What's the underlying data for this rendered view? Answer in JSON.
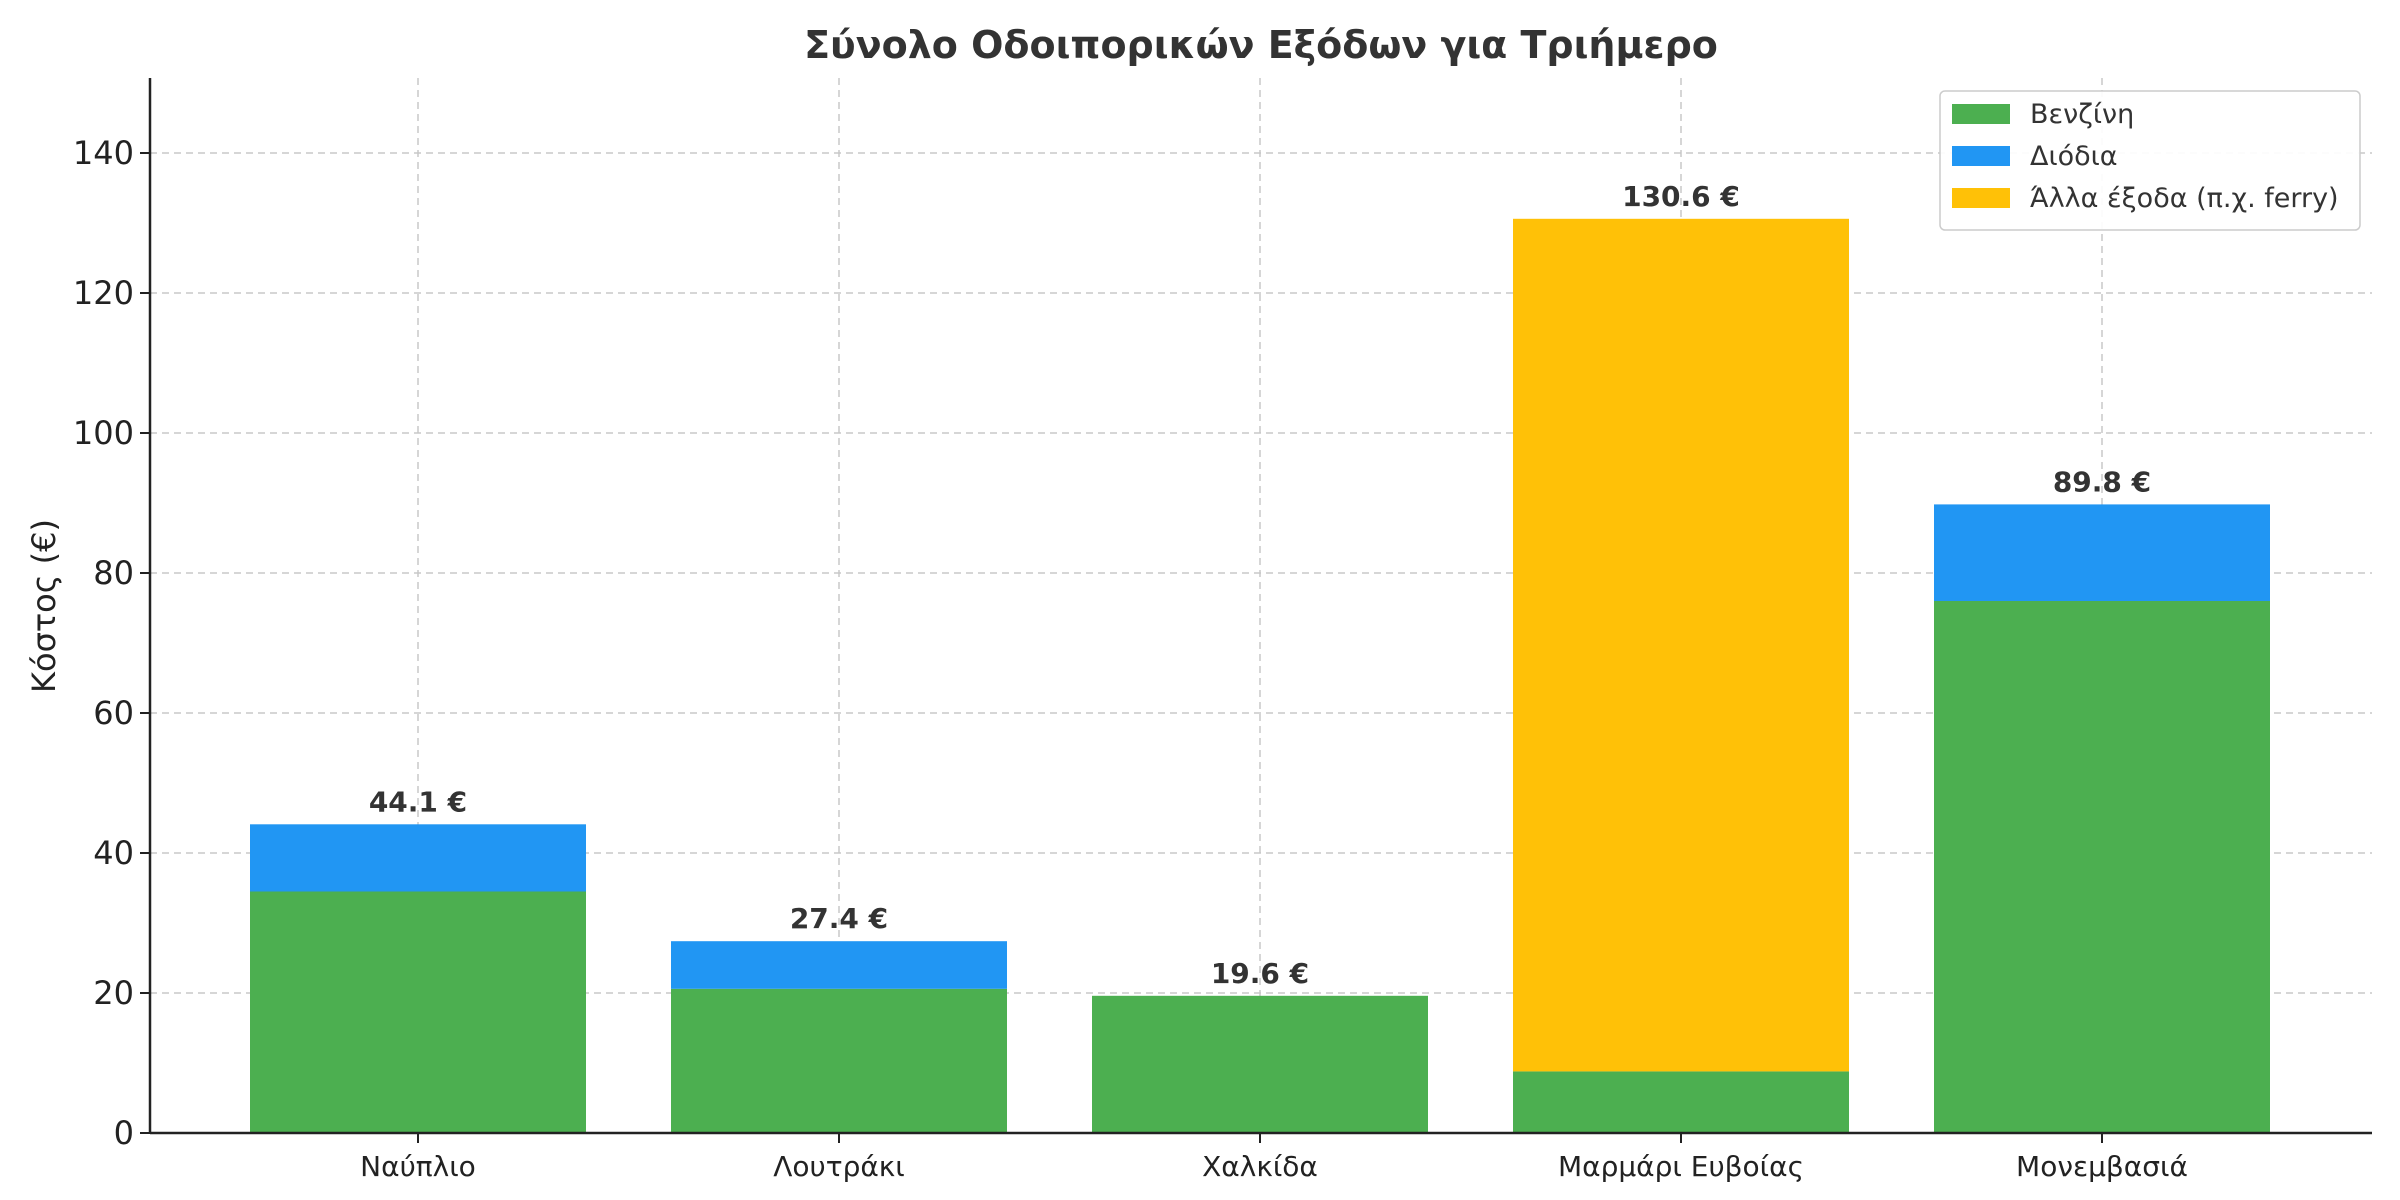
{
  "chart_data": {
    "type": "bar",
    "stacked": true,
    "title": "Σύνολο Οδοιπορικών Εξόδων για Τριήμερο",
    "xlabel": "",
    "ylabel": "Κόστος (€)",
    "ylim": [
      0,
      150
    ],
    "yticks": [
      0,
      20,
      40,
      60,
      80,
      100,
      120,
      140
    ],
    "grid": true,
    "legend_position": "top-right",
    "categories": [
      "Ναύπλιο",
      "Λουτράκι",
      "Χαλκίδα",
      "Μαρμάρι Ευβοίας",
      "Μονεμβασιά"
    ],
    "series": [
      {
        "name": "Βενζίνη",
        "color": "#4caf50",
        "values": [
          34.5,
          20.6,
          19.6,
          8.8,
          76.0
        ]
      },
      {
        "name": "Διόδια",
        "color": "#2196f3",
        "values": [
          9.6,
          6.8,
          0,
          0,
          13.8
        ]
      },
      {
        "name": "Άλλα έξοδα (π.χ. ferry)",
        "color": "#ffc107",
        "values": [
          0,
          0,
          0,
          121.8,
          0
        ]
      }
    ],
    "total_labels": [
      "44.1 €",
      "27.4 €",
      "19.6 €",
      "130.6 €",
      "89.8 €"
    ]
  }
}
